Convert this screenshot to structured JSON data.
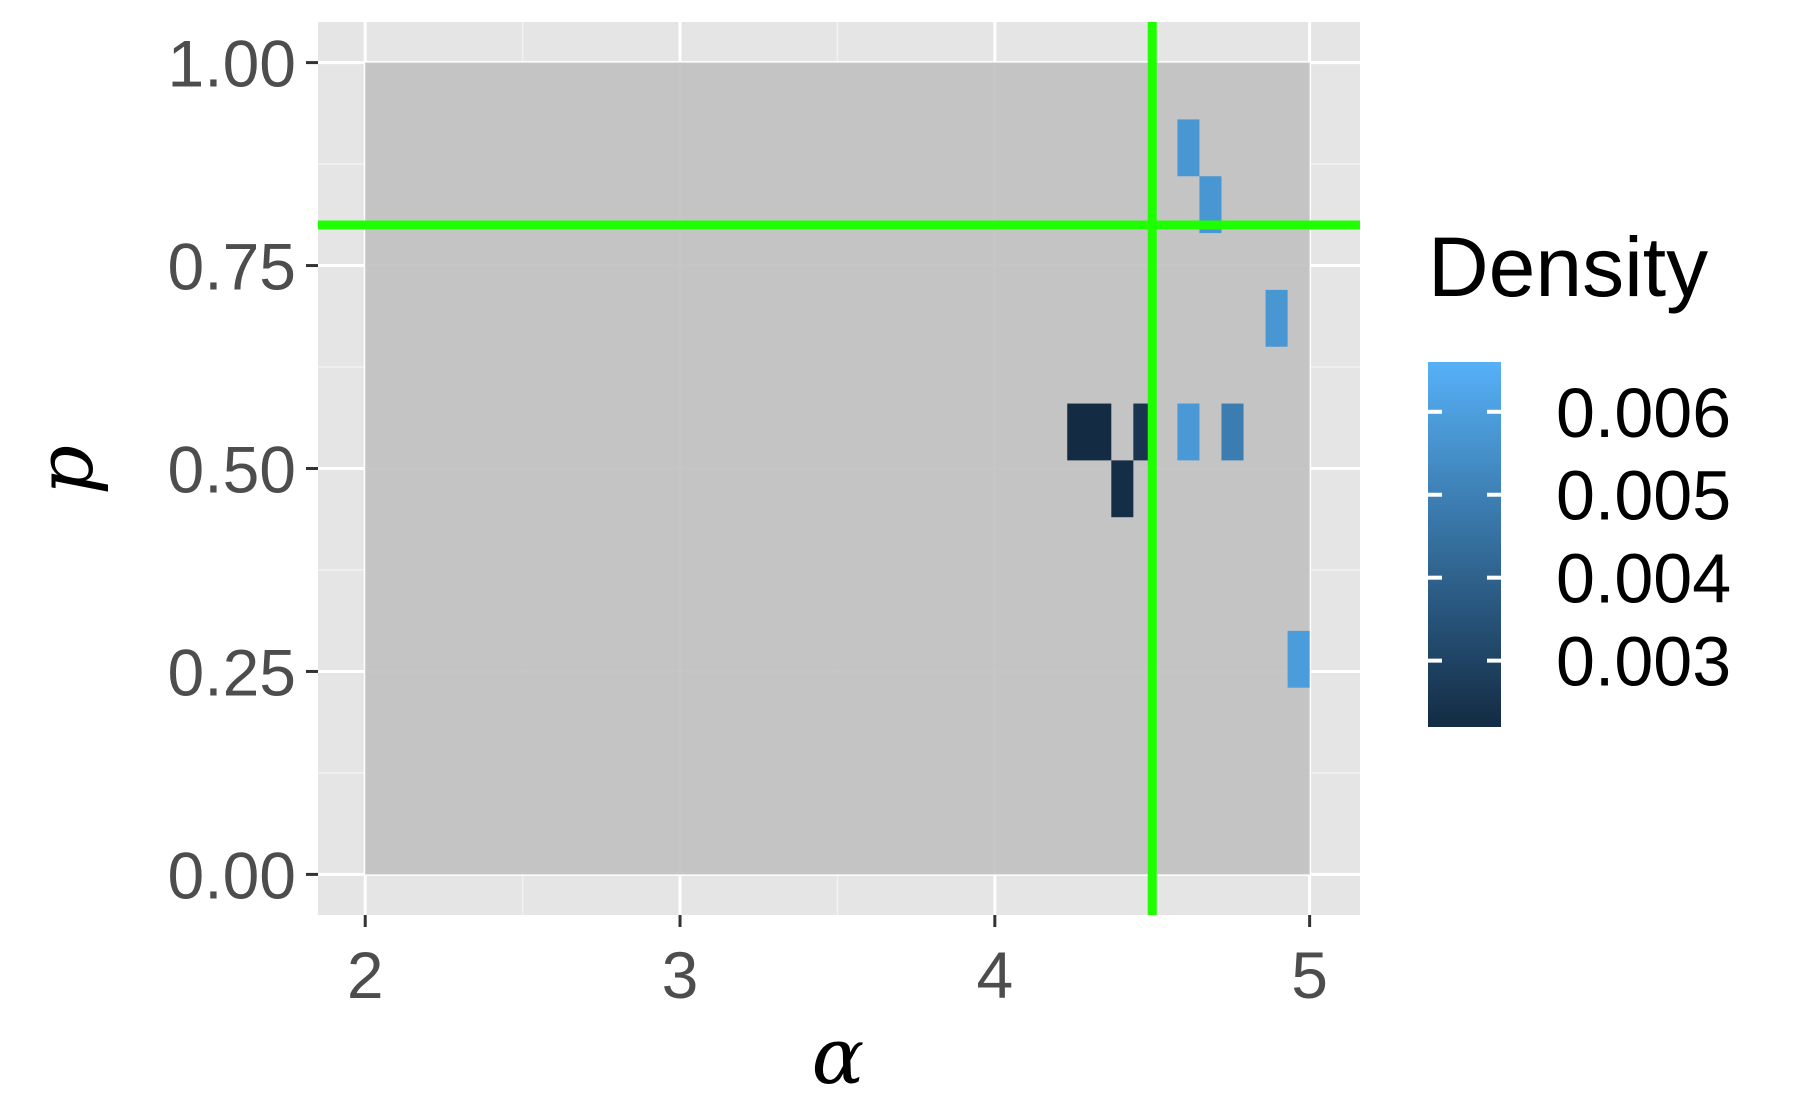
{
  "chart_data": {
    "type": "heatmap",
    "xlabel": "α",
    "ylabel": "p",
    "xlim": [
      1.85,
      5.16
    ],
    "ylim": [
      -0.05,
      1.05
    ],
    "x_ticks": [
      2,
      3,
      4,
      5
    ],
    "x_tick_labels": [
      "2",
      "3",
      "4",
      "5"
    ],
    "y_ticks": [
      0.0,
      0.25,
      0.5,
      0.75,
      1.0
    ],
    "y_tick_labels": [
      "0.00",
      "0.25",
      "0.50",
      "0.75",
      "1.00"
    ],
    "grid": true,
    "background_region": {
      "x": [
        2,
        5
      ],
      "y": [
        0,
        1
      ],
      "color": "#c0c0c0"
    },
    "reference_lines": {
      "vline_x": 4.5,
      "hline_y": 0.8,
      "color": "#1eff00"
    },
    "tiles": [
      {
        "x0": 4.23,
        "x1": 4.37,
        "y0": 0.51,
        "y1": 0.58,
        "density": 0.0022
      },
      {
        "x0": 4.37,
        "x1": 4.44,
        "y0": 0.44,
        "y1": 0.51,
        "density": 0.0023
      },
      {
        "x0": 4.44,
        "x1": 4.51,
        "y0": 0.51,
        "y1": 0.58,
        "density": 0.0025
      },
      {
        "x0": 4.58,
        "x1": 4.65,
        "y0": 0.51,
        "y1": 0.58,
        "density": 0.0058
      },
      {
        "x0": 4.72,
        "x1": 4.79,
        "y0": 0.51,
        "y1": 0.58,
        "density": 0.0049
      },
      {
        "x0": 4.58,
        "x1": 4.65,
        "y0": 0.86,
        "y1": 0.93,
        "density": 0.0057
      },
      {
        "x0": 4.65,
        "x1": 4.72,
        "y0": 0.79,
        "y1": 0.86,
        "density": 0.0057
      },
      {
        "x0": 4.86,
        "x1": 4.93,
        "y0": 0.65,
        "y1": 0.72,
        "density": 0.0057
      },
      {
        "x0": 4.93,
        "x1": 5.0,
        "y0": 0.23,
        "y1": 0.3,
        "density": 0.0059
      }
    ],
    "legend": {
      "title": "Density",
      "position": "right",
      "range": [
        0.0022,
        0.0066
      ],
      "low_color": "#132b43",
      "high_color": "#56b1f7",
      "breaks": [
        0.003,
        0.004,
        0.005,
        0.006
      ],
      "break_labels": [
        "0.003",
        "0.004",
        "0.005",
        "0.006"
      ]
    }
  }
}
